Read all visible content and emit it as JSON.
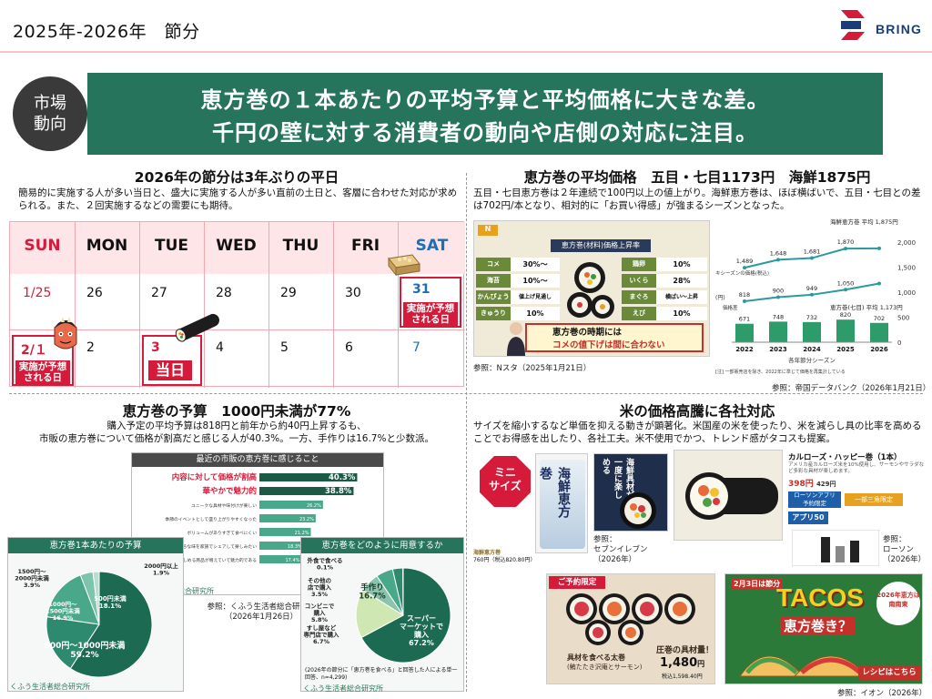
{
  "header": {
    "title": "2025年-2026年　節分",
    "logo_text": "BRING"
  },
  "banner": {
    "badge_line1": "市場",
    "badge_line2": "動向",
    "line1": "恵方巻の１本あたりの平均予算と平均価格に大きな差。",
    "line2": "千円の壁に対する消費者の動向や店側の対応に注目。"
  },
  "section1": {
    "title": "2026年の節分は3年ぶりの平日",
    "desc": "簡易的に実施する人が多い当日と、盛大に実施する人が多い直前の土日と、客層に合わせた対応が求められる。また、２回実施するなどの需要にも期待。",
    "days": [
      "SUN",
      "MON",
      "TUE",
      "WED",
      "THU",
      "FRI",
      "SAT"
    ],
    "week1": [
      "1/25",
      "26",
      "27",
      "28",
      "29",
      "30",
      "31"
    ],
    "week2": [
      "2/１",
      "2",
      "3",
      "4",
      "5",
      "6",
      "7"
    ],
    "label_expected": "実施が予想される日",
    "label_today": "当日"
  },
  "section2": {
    "title": "恵方巻の平均価格　五目・七目1173円　海鮮1875円",
    "desc": "五目・七目恵方巻は２年連続で100円以上の値上がり。海鮮恵方巻は、ほぼ横ばいで、五目・七目との差は702円/本となり、相対的に「お買い得感」が強まるシーズンとなった。",
    "tv": {
      "corner": "N",
      "headline": "恵方巻(材料)価格上昇率",
      "items": [
        {
          "name": "コメ",
          "value": "30%〜"
        },
        {
          "name": "海苔",
          "value": "10%〜"
        },
        {
          "name": "かんぴょう",
          "value": "値上げ見通し"
        },
        {
          "name": "きゅうり",
          "value": "10%"
        },
        {
          "name": "鶏卵",
          "value": "10%"
        },
        {
          "name": "いくら",
          "value": "28%"
        },
        {
          "name": "まぐろ",
          "value": "横ばい〜上昇"
        },
        {
          "name": "えび",
          "value": "10%"
        }
      ],
      "bottom1": "恵方巻の時期には",
      "bottom2": "コメの値下げは間に合わない",
      "ref": "参照：Nスタ（2025年1月21日）"
    },
    "ref": "参照：帝国データバンク（2026年1月21日）"
  },
  "chart_data": [
    {
      "type": "line",
      "title": "",
      "x": [
        "2022",
        "2023",
        "2024",
        "2025",
        "2026"
      ],
      "series": [
        {
          "name": "海鮮恵方巻",
          "values": [
            1489,
            1648,
            1681,
            1870,
            1875
          ]
        },
        {
          "name": "恵方巻(七目)",
          "values": [
            818,
            900,
            949,
            1050,
            1173
          ]
        }
      ],
      "bars": {
        "name": "価格差",
        "values": [
          671,
          748,
          732,
          820,
          702
        ]
      },
      "xlabel": "各年節分シーズン",
      "ylabel": "(円)",
      "ylim": [
        0,
        2000
      ],
      "ytick_labels": [
        "2,000",
        "1,500",
        "1,000",
        "500",
        "0"
      ],
      "annotations": [
        "海鮮恵方巻 平均 1,875円",
        "恵方巻(七目) 平均 1,173円",
        "キシーズンの価格(税込)",
        "価格差"
      ],
      "footnote": "[注] 一部販売店を除き、2022年に準じて価格を再集計している"
    },
    {
      "type": "bar",
      "title": "最近の市販の恵方巻に感じること",
      "categories": [
        "内容に対して価格が割高",
        "華やかで魅力的",
        "ユニークな具材や味付けが楽しい",
        "季節のイベントとして盛り上がりやすくなった",
        "ボリュームがありすぎて食べにくい",
        "価格が妥当なのでいろいろな味を家族でシェアして楽しみたい",
        "子どもや若い世代が楽しめる商品が増えていて魅力的である"
      ],
      "values": [
        40.3,
        38.8,
        26.2,
        23.2,
        21.2,
        18.3,
        17.4
      ],
      "footnote": "「恵方巻を購入する」と回答した人",
      "source": "くふう生活者総合研究所"
    },
    {
      "type": "pie",
      "title": "恵方巻1本あたりの予算",
      "categories": [
        "500円〜1000円未満",
        "500円未満",
        "1000円〜1500円未満",
        "1500円〜2000円未満",
        "2000円以上"
      ],
      "values": [
        59.2,
        18.1,
        16.9,
        3.9,
        1.9
      ],
      "source": "くふう生活者総合研究所"
    },
    {
      "type": "pie",
      "title": "恵方巻をどのように用意するか",
      "categories": [
        "スーパーマーケットで購入",
        "手作り",
        "すし屋など専門店で購入",
        "コンビニで購入",
        "その他の店で購入",
        "外食で食べる"
      ],
      "values": [
        67.2,
        16.7,
        6.7,
        5.8,
        3.5,
        0.1
      ],
      "footnote": "(2026年の節分に「恵方巻を食べる」と回答した人による単一回答、n=4,299)",
      "source": "くふう生活者総合研究所"
    }
  ],
  "section3": {
    "title": "恵方巻の予算　1000円未満が77%",
    "desc1": "購入予定の平均予算は818円と前年から約40円上昇するも、",
    "desc2": "市販の恵方巻について価格が割高だと感じる人が40.3%。一方、手作りは16.7%と少数派。",
    "ref1": "参照：くふう生活者総合研究所",
    "ref2": "（2026年1月26日）"
  },
  "section4": {
    "title": "米の価格高騰に各社対応",
    "desc": "サイズを縮小するなど単価を抑える動きが顕著化。米国産の米を使ったり、米を減らし具の比率を高めることでお得感を出したり、各社工夫。米不使用でかつ、トレンド感がタコスも提案。",
    "mini_badge1": "ミニ",
    "mini_badge2": "サイズ",
    "seven_pack": "海鮮恵方巻",
    "seven_vertical": "海鮮恵方巻",
    "seven_caption1": "海鮮恵方巻",
    "seven_caption2": "760円（税込820.80円）",
    "seven_ad": "海鮮具材が一度に楽しめる",
    "ref_seven1": "参照：",
    "ref_seven2": "セブンイレブン",
    "ref_seven3": "（2026年）",
    "lawson_title": "カルローズ・ハッピー巻（1本）",
    "lawson_desc": "アメリカ産カルローズ米を10%使用し、サーモンやサラダなど多彩な具材が楽しめます。",
    "lawson_price1": "398円",
    "lawson_price2": "429円",
    "lawson_badge1": "ローソンアプリ",
    "lawson_badge2": "予約限定",
    "lawson_badge3": "一部三角限定",
    "lawson_app": "アプリ50",
    "ref_lawson1": "参照：",
    "ref_lawson2": "ローソン",
    "ref_lawson3": "（2026年）",
    "aeon_tag": "ご予約限定",
    "aeon_name": "具材を食べる太巻",
    "aeon_sub": "(鮪たたき沢庵とサーモン)",
    "aeon_catch": "圧巻の具材量！",
    "aeon_price": "1,480",
    "aeon_price_unit": "円",
    "aeon_tax": "税込1,598.40円",
    "tacos_date": "2月3日は節分",
    "tacos_title": "TACOS",
    "tacos_sub": "恵方巻き？",
    "tacos_direction": "2026年恵方は南南東",
    "tacos_recipe": "レシピはこちら",
    "ref_aeon": "参照：イオン（2026年）"
  }
}
